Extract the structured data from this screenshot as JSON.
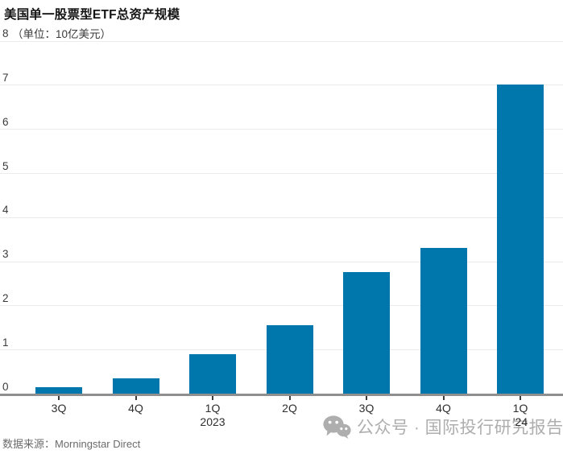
{
  "title": "美国单一股票型ETF总资产规模",
  "unit_label": "（单位：10亿美元）",
  "source": "数据来源：Morningstar Direct",
  "watermark": {
    "icon": "wechat-icon",
    "text": "公众号 · 国际投行研究报告"
  },
  "colors": {
    "bar": "#0077ac",
    "gridline": "#ebebeb",
    "axis_line": "#8f8f8f",
    "watermark": "#aeaeae"
  },
  "chart_data": {
    "type": "bar",
    "title": "美国单一股票型ETF总资产规模",
    "ylabel": "10亿美元",
    "ylim": [
      0,
      8
    ],
    "yticks": [
      0,
      1,
      2,
      3,
      4,
      5,
      6,
      7,
      8
    ],
    "grid": "horizontal",
    "legend": "none",
    "categories": [
      [
        "3Q"
      ],
      [
        "4Q"
      ],
      [
        "1Q",
        "2023"
      ],
      [
        "2Q"
      ],
      [
        "3Q"
      ],
      [
        "4Q"
      ],
      [
        "1Q",
        "'24"
      ]
    ],
    "values": [
      0.15,
      0.35,
      0.9,
      1.55,
      2.75,
      3.3,
      7.0
    ]
  }
}
